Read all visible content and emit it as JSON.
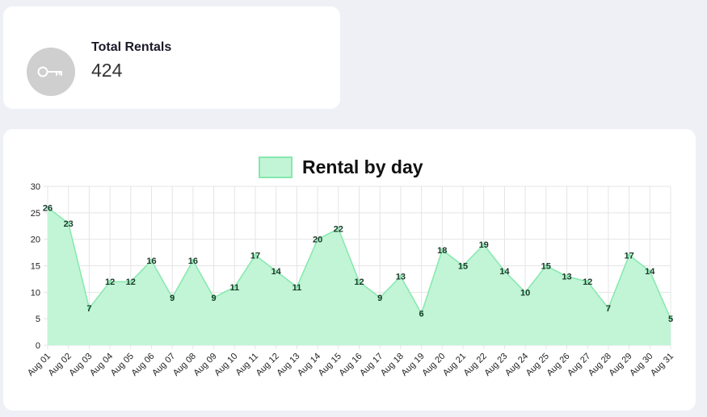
{
  "stat_card": {
    "title": "Total Rentals",
    "value": "424",
    "icon": "key-icon"
  },
  "colors": {
    "page_bg": "#eef0f6",
    "card_bg": "#ffffff",
    "icon_circle": "#cfcfcf",
    "series_fill": "#c1f5d6",
    "series_line": "#86e8ad"
  },
  "chart_data": {
    "type": "area",
    "legend_position": "top",
    "grid": true,
    "ylim": [
      0,
      30
    ],
    "y_ticks": [
      "0",
      "5",
      "10",
      "15",
      "20",
      "25",
      "30"
    ],
    "categories": [
      "Aug 01",
      "Aug 02",
      "Aug 03",
      "Aug 04",
      "Aug 05",
      "Aug 06",
      "Aug 07",
      "Aug 08",
      "Aug 09",
      "Aug 10",
      "Aug 11",
      "Aug 12",
      "Aug 13",
      "Aug 14",
      "Aug 15",
      "Aug 16",
      "Aug 17",
      "Aug 18",
      "Aug 19",
      "Aug 20",
      "Aug 21",
      "Aug 22",
      "Aug 23",
      "Aug 24",
      "Aug 25",
      "Aug 26",
      "Aug 27",
      "Aug 28",
      "Aug 29",
      "Aug 30",
      "Aug 31"
    ],
    "series": [
      {
        "name": "Rental by day",
        "values": [
          26,
          23,
          7,
          12,
          12,
          16,
          9,
          16,
          9,
          11,
          17,
          14,
          11,
          20,
          22,
          12,
          9,
          13,
          6,
          18,
          15,
          19,
          14,
          10,
          15,
          13,
          12,
          7,
          17,
          14,
          5
        ]
      }
    ]
  }
}
